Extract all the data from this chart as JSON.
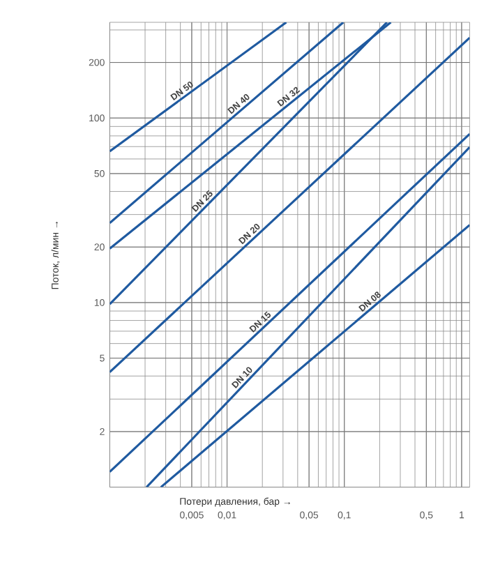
{
  "chart_data": {
    "type": "line",
    "xlabel": "Потери давления, бар →",
    "ylabel": "Поток, л/мин →",
    "log": "xy",
    "grid": true,
    "marker": "none",
    "xlim": [
      0.001,
      1.17
    ],
    "ylim": [
      1,
      330
    ],
    "xticks": [
      {
        "value": 0.005,
        "label": "0,005"
      },
      {
        "value": 0.01,
        "label": "0,01"
      },
      {
        "value": 0.05,
        "label": "0,05"
      },
      {
        "value": 0.1,
        "label": "0,1"
      },
      {
        "value": 0.5,
        "label": "0,5"
      },
      1
    ],
    "yticks": [
      2,
      5,
      10,
      20,
      50,
      100,
      200
    ],
    "series": [
      {
        "name": "DN 50",
        "color": "#1f5aa0",
        "x": [
          0.001,
          0.032
        ],
        "values": [
          66,
          330
        ]
      },
      {
        "name": "DN 40",
        "color": "#1f5aa0",
        "x": [
          0.001,
          0.098
        ],
        "values": [
          27,
          330
        ]
      },
      {
        "name": "DN 32",
        "color": "#1f5aa0",
        "x": [
          0.001,
          0.249
        ],
        "values": [
          19.6,
          330
        ]
      },
      {
        "name": "DN 25",
        "color": "#1f5aa0",
        "x": [
          0.001,
          0.231
        ],
        "values": [
          9.8,
          330
        ]
      },
      {
        "name": "DN 20",
        "color": "#1f5aa0",
        "x": [
          0.001,
          1.17
        ],
        "values": [
          4.2,
          272
        ]
      },
      {
        "name": "DN 15",
        "color": "#1f5aa0",
        "x": [
          0.001,
          1.17
        ],
        "values": [
          1.21,
          82
        ]
      },
      {
        "name": "DN 10",
        "color": "#1f5aa0",
        "x": [
          0.00206,
          1.17
        ],
        "values": [
          1,
          69.5
        ]
      },
      {
        "name": "DN 08",
        "color": "#1f5aa0",
        "x": [
          0.00273,
          1.17
        ],
        "values": [
          1,
          26.3
        ]
      }
    ]
  }
}
